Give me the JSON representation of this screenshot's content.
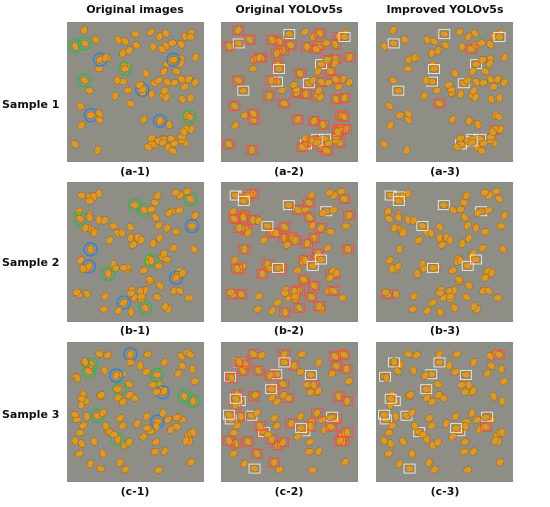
{
  "column_headers": [
    "Original images",
    "Original YOLOv5s",
    "Improved YOLOv5s"
  ],
  "rows": [
    {
      "label": "Sample 1",
      "captions": [
        "(a-1)",
        "(a-2)",
        "(a-3)"
      ]
    },
    {
      "label": "Sample 2",
      "captions": [
        "(b-1)",
        "(b-2)",
        "(b-3)"
      ]
    },
    {
      "label": "Sample 3",
      "captions": [
        "(c-1)",
        "(c-2)",
        "(c-3)"
      ]
    }
  ]
}
